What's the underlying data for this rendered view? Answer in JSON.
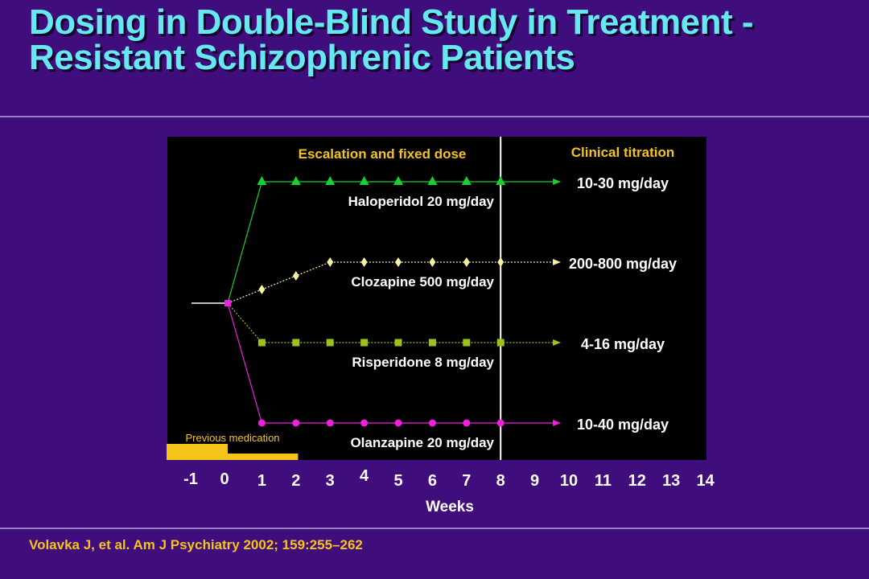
{
  "slide": {
    "title_line1": "Dosing in Double-Blind Study in Treatment -",
    "title_line2": "Resistant Schizophrenic Patients",
    "citation": "Volavka J, et al. Am J Psychiatry 2002; 159:255–262"
  },
  "colors": {
    "background": "#3f0d7c",
    "title": "#66e8f2",
    "yellow_text": "#f4c518",
    "haloperidol": "#19d12e",
    "clozapine": "#f6f0a0",
    "risperidone": "#9cc21c",
    "olanzapine": "#f21ee0",
    "previous": "#f4c518"
  },
  "chart_data": {
    "type": "line",
    "xlabel": "Weeks",
    "x_ticks": [
      "-1",
      "0",
      "1",
      "2",
      "3",
      "4",
      "5",
      "6",
      "7",
      "8",
      "9",
      "10",
      "11",
      "12",
      "13",
      "14"
    ],
    "xlim": [
      -1,
      14
    ],
    "phase_labels": {
      "escalation": "Escalation and fixed dose",
      "titration": "Clinical titration"
    },
    "phase_boundary_week": 8,
    "previous_medication": {
      "label": "Previous medication",
      "start_week": -1,
      "end_week": 1
    },
    "series": [
      {
        "key": "haloperidol",
        "name": "Haloperidol 20 mg/day",
        "titration_label": "10-30 mg/day",
        "marker": "triangle",
        "x": [
          1,
          2,
          3,
          4,
          5,
          6,
          7,
          8
        ],
        "dose_mg_per_day": [
          20,
          20,
          20,
          20,
          20,
          20,
          20,
          20
        ]
      },
      {
        "key": "clozapine",
        "name": "Clozapine 500 mg/day",
        "titration_label": "200-800 mg/day",
        "marker": "diamond",
        "x": [
          1,
          2,
          3,
          4,
          5,
          6,
          7,
          8
        ],
        "dose_mg_per_day": [
          200,
          350,
          500,
          500,
          500,
          500,
          500,
          500
        ]
      },
      {
        "key": "risperidone",
        "name": "Risperidone 8 mg/day",
        "titration_label": "4-16 mg/day",
        "marker": "square",
        "x": [
          1,
          2,
          3,
          4,
          5,
          6,
          7,
          8
        ],
        "dose_mg_per_day": [
          8,
          8,
          8,
          8,
          8,
          8,
          8,
          8
        ]
      },
      {
        "key": "olanzapine",
        "name": "Olanzapine 20 mg/day",
        "titration_label": "10-40 mg/day",
        "marker": "circle",
        "x": [
          1,
          2,
          3,
          4,
          5,
          6,
          7,
          8
        ],
        "dose_mg_per_day": [
          20,
          20,
          20,
          20,
          20,
          20,
          20,
          20
        ]
      }
    ]
  }
}
